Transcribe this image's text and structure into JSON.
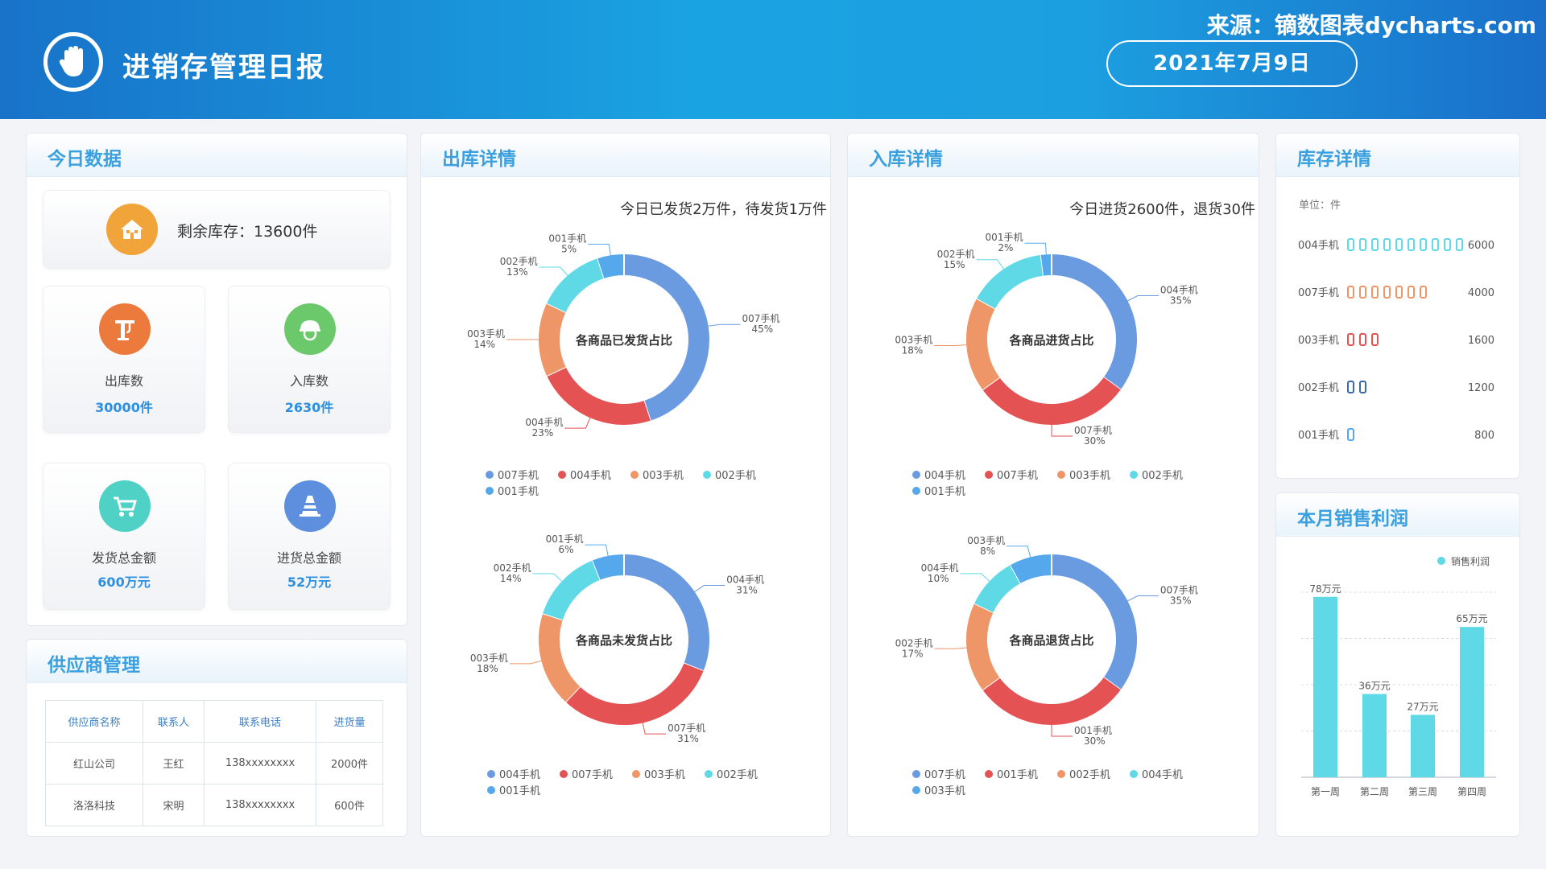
{
  "header": {
    "title": "进销存管理日报",
    "source": "来源：镝数图表dycharts.com",
    "date": "2021年7月9日"
  },
  "colors": {
    "blue": "#6a9be0",
    "red": "#e55254",
    "orange": "#ee9668",
    "cyan": "#5fd9e6",
    "lightblue": "#56a8ec",
    "accent": "#3aa0df",
    "kpi": "#2d8fe0"
  },
  "today": {
    "title": "今日数据",
    "stock": "剩余库存：13600件",
    "kpis": [
      {
        "label": "出库数",
        "value": "30000件",
        "icon": "crane-icon",
        "color": "#ec7a3c"
      },
      {
        "label": "入库数",
        "value": "2630件",
        "icon": "worker-helmet-icon",
        "color": "#6cc96b"
      },
      {
        "label": "发货总金额",
        "value": "600万元",
        "icon": "cart-icon",
        "color": "#4fd1c5"
      },
      {
        "label": "进货总金额",
        "value": "52万元",
        "icon": "cone-icon",
        "color": "#5d8fde"
      }
    ]
  },
  "supplier": {
    "title": "供应商管理",
    "headers": [
      "供应商名称",
      "联系人",
      "联系电话",
      "进货量"
    ],
    "rows": [
      [
        "红山公司",
        "王红",
        "138xxxxxxxx",
        "2000件"
      ],
      [
        "洛洛科技",
        "宋明",
        "138xxxxxxxx",
        "600件"
      ]
    ]
  },
  "outbound": {
    "title": "出库详情",
    "subtitle": "今日已发货2万件，待发货1万件"
  },
  "inbound": {
    "title": "入库详情",
    "subtitle": "今日进货2600件，退货30件"
  },
  "stock": {
    "title": "库存详情",
    "unit": "单位：件"
  },
  "profit": {
    "title": "本月销售利润"
  },
  "chart_data": [
    {
      "type": "pie",
      "center_label": "各商品已发货占比",
      "slices": [
        {
          "name": "007手机",
          "value": 45,
          "label": "45%",
          "color": "#6a9be0"
        },
        {
          "name": "004手机",
          "value": 23,
          "label": "23%",
          "color": "#e55254"
        },
        {
          "name": "003手机",
          "value": 14,
          "label": "14%",
          "color": "#ee9668"
        },
        {
          "name": "002手机",
          "value": 13,
          "label": "13%",
          "color": "#5fd9e6"
        },
        {
          "name": "001手机",
          "value": 5,
          "label": "5%",
          "color": "#56a8ec"
        }
      ]
    },
    {
      "type": "pie",
      "center_label": "各商品未发货占比",
      "slices": [
        {
          "name": "004手机",
          "value": 31,
          "label": "31%",
          "color": "#6a9be0"
        },
        {
          "name": "007手机",
          "value": 31,
          "label": "31%",
          "color": "#e55254"
        },
        {
          "name": "003手机",
          "value": 18,
          "label": "18%",
          "color": "#ee9668"
        },
        {
          "name": "002手机",
          "value": 14,
          "label": "14%",
          "color": "#5fd9e6"
        },
        {
          "name": "001手机",
          "value": 6,
          "label": "6%",
          "color": "#56a8ec"
        }
      ]
    },
    {
      "type": "pie",
      "center_label": "各商品进货占比",
      "slices": [
        {
          "name": "004手机",
          "value": 35,
          "label": "35%",
          "color": "#6a9be0"
        },
        {
          "name": "007手机",
          "value": 30,
          "label": "30%",
          "color": "#e55254"
        },
        {
          "name": "003手机",
          "value": 18,
          "label": "18%",
          "color": "#ee9668"
        },
        {
          "name": "002手机",
          "value": 15,
          "label": "15%",
          "color": "#5fd9e6"
        },
        {
          "name": "001手机",
          "value": 2,
          "label": "2%",
          "color": "#56a8ec"
        }
      ]
    },
    {
      "type": "pie",
      "center_label": "各商品退货占比",
      "slices": [
        {
          "name": "007手机",
          "value": 35,
          "label": "35%",
          "color": "#6a9be0"
        },
        {
          "name": "001手机",
          "value": 30,
          "label": "30%",
          "color": "#e55254"
        },
        {
          "name": "002手机",
          "value": 17,
          "label": "17%",
          "color": "#ee9668"
        },
        {
          "name": "004手机",
          "value": 10,
          "label": "10%",
          "color": "#5fd9e6"
        },
        {
          "name": "003手机",
          "value": 8,
          "label": "8%",
          "color": "#56a8ec"
        }
      ]
    },
    {
      "type": "bar",
      "name": "库存详情",
      "categories": [
        "004手机",
        "007手机",
        "003手机",
        "002手机",
        "001手机"
      ],
      "values": [
        6000,
        4000,
        1600,
        1200,
        800
      ],
      "colors": [
        "#5fd9e6",
        "#ee9668",
        "#e55254",
        "#3a6aa8",
        "#56a8ec"
      ]
    },
    {
      "type": "bar",
      "categories": [
        "第一周",
        "第二周",
        "第三周",
        "第四周"
      ],
      "values": [
        78,
        36,
        27,
        65
      ],
      "labels": [
        "78万元",
        "36万元",
        "27万元",
        "65万元"
      ],
      "legend": "销售利润",
      "legend_position": "top-right",
      "ylim": [
        0,
        80
      ],
      "color": "#5fd9e6"
    }
  ]
}
